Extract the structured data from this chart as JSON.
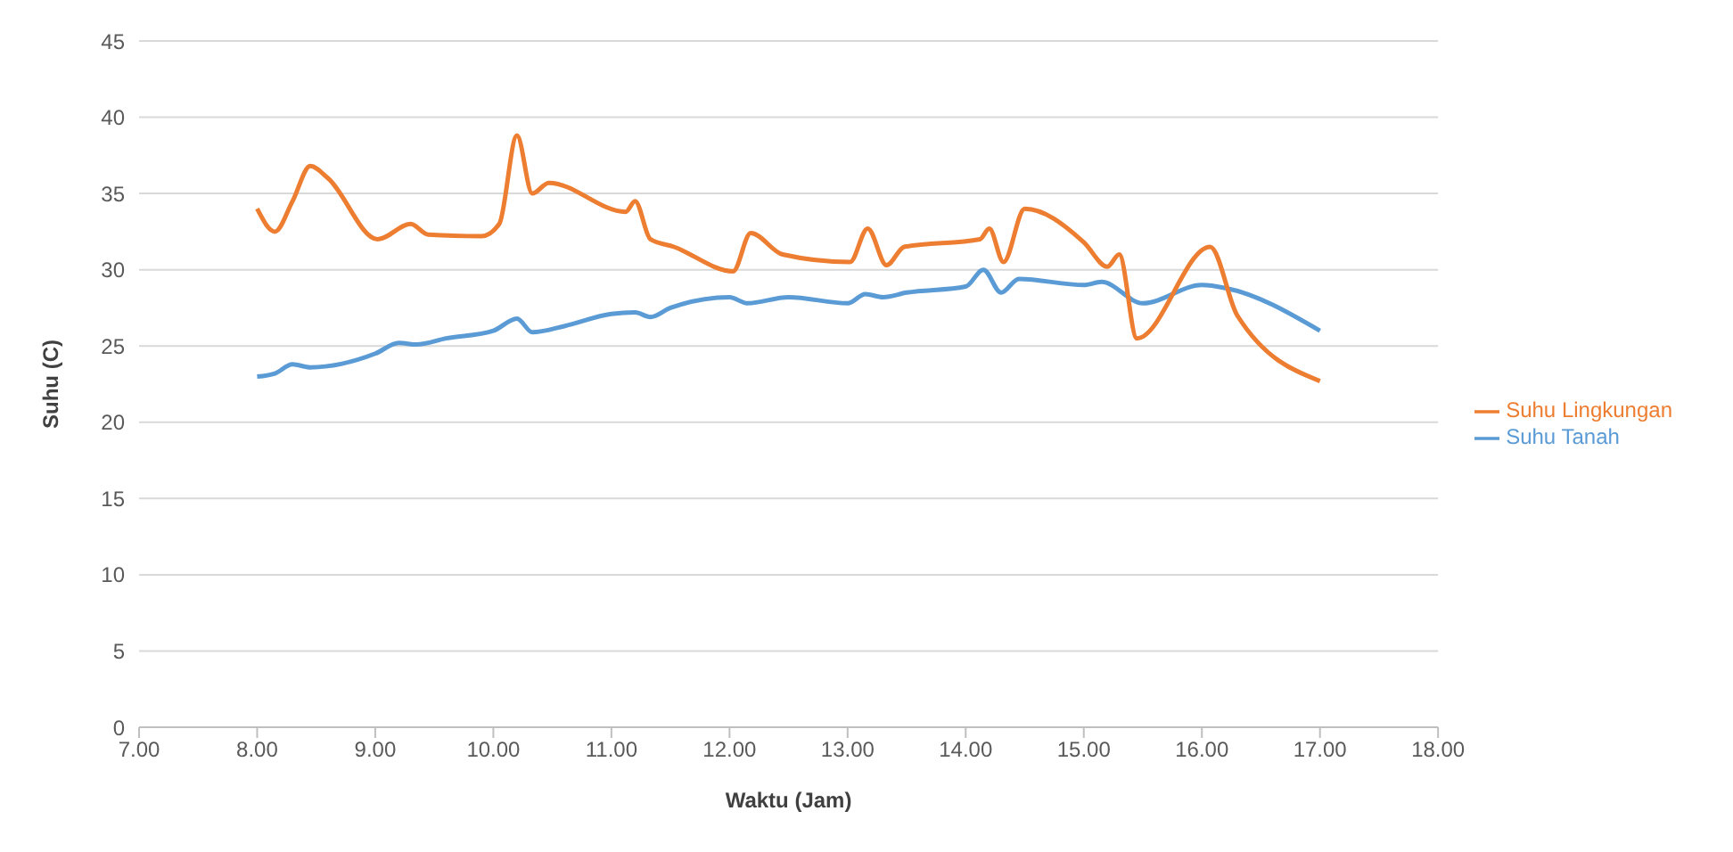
{
  "chart_data": {
    "type": "line",
    "xlabel": "Waktu (Jam)",
    "ylabel": "Suhu (C)",
    "xlim": [
      7,
      18
    ],
    "xticks": [
      {
        "value": 7,
        "label": "7.00"
      },
      {
        "value": 8,
        "label": "8.00"
      },
      {
        "value": 9,
        "label": "9.00"
      },
      {
        "value": 10,
        "label": "10.00"
      },
      {
        "value": 11,
        "label": "11.00"
      },
      {
        "value": 12,
        "label": "12.00"
      },
      {
        "value": 13,
        "label": "13.00"
      },
      {
        "value": 14,
        "label": "14.00"
      },
      {
        "value": 15,
        "label": "15.00"
      },
      {
        "value": 16,
        "label": "16.00"
      },
      {
        "value": 17,
        "label": "17.00"
      },
      {
        "value": 18,
        "label": "18.00"
      }
    ],
    "ylim": [
      0,
      45
    ],
    "yticks": [
      0,
      5,
      10,
      15,
      20,
      25,
      30,
      35,
      40,
      45
    ],
    "grid": "y",
    "legend": "right",
    "marker": "none",
    "line_style": "solid",
    "series": [
      {
        "name": "Suhu Tanah",
        "color": "#5b9bd5",
        "x": [
          8.0,
          8.15,
          8.3,
          8.45,
          9.0,
          9.2,
          9.35,
          9.6,
          10.0,
          10.2,
          10.33,
          10.6,
          11.0,
          11.2,
          11.33,
          11.5,
          12.0,
          12.15,
          12.5,
          13.0,
          13.15,
          13.3,
          13.5,
          14.0,
          14.15,
          14.3,
          14.45,
          15.0,
          15.15,
          15.5,
          16.0,
          16.2,
          17.0
        ],
        "values": [
          23,
          23.2,
          23.8,
          23.6,
          24.5,
          25.2,
          25.1,
          25.5,
          26,
          26.8,
          25.9,
          26.3,
          27.1,
          27.2,
          26.9,
          27.5,
          28.2,
          27.8,
          28.2,
          27.8,
          28.4,
          28.2,
          28.5,
          28.9,
          30,
          28.5,
          29.4,
          29,
          29.2,
          27.8,
          29,
          28.8,
          26
        ]
      },
      {
        "name": "Suhu Lingkungan",
        "color": "#ed7d31",
        "x": [
          8.0,
          8.15,
          8.3,
          8.45,
          8.6,
          9.02,
          9.3,
          9.45,
          9.9,
          10.05,
          10.2,
          10.33,
          10.47,
          11.12,
          11.2,
          11.33,
          11.53,
          12.03,
          12.18,
          12.45,
          13.02,
          13.17,
          13.33,
          13.48,
          14.12,
          14.2,
          14.32,
          14.5,
          15.0,
          15.2,
          15.3,
          15.45,
          16.07,
          16.3,
          17.0
        ],
        "values": [
          34,
          32.5,
          34.5,
          36.8,
          36,
          32,
          33,
          32.3,
          32.2,
          33,
          38.8,
          35,
          35.7,
          33.8,
          34.5,
          32,
          31.5,
          29.9,
          32.4,
          31,
          30.5,
          32.7,
          30.3,
          31.5,
          32,
          32.7,
          30.5,
          34,
          31.8,
          30.2,
          31,
          25.5,
          31.5,
          27,
          22.7
        ]
      }
    ]
  }
}
